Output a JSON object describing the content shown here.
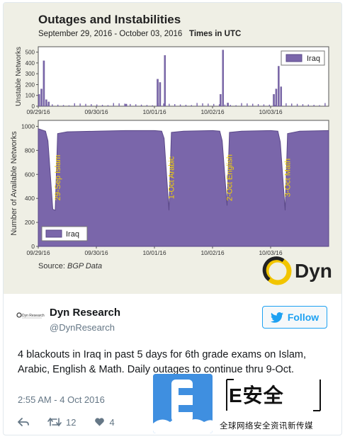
{
  "chart_header": {
    "title": "Outages and Instabilities",
    "dates": "September 29, 2016 - October 03, 2016",
    "timezone": "Times in UTC",
    "source_label": "Source:",
    "source_value": "BGP Data"
  },
  "chart_data": [
    {
      "type": "bar",
      "ylabel": "Unstable Networks",
      "ylim": [
        0,
        550
      ],
      "y_ticks": [
        "0",
        "100",
        "200",
        "300",
        "400",
        "500"
      ],
      "x_ticks": [
        "09/29/16",
        "09/30/16",
        "10/01/16",
        "10/02/16",
        "10/03/16"
      ],
      "legend": "Iraq",
      "legend_position": "top-right",
      "series": [
        {
          "name": "Iraq",
          "x": [
            "09/29 00:00",
            "09/29 01:00",
            "09/29 02:00",
            "09/29 03:00",
            "09/29 04:00",
            "09/30 12:00",
            "10/01 01:00",
            "10/01 02:00",
            "10/01 04:00",
            "10/02 03:00",
            "10/02 04:00",
            "10/02 06:00",
            "10/03 01:00",
            "10/03 02:00",
            "10/03 03:00",
            "10/03 04:00"
          ],
          "values": [
            110,
            160,
            420,
            60,
            40,
            20,
            250,
            220,
            470,
            110,
            520,
            30,
            110,
            160,
            370,
            180
          ]
        }
      ]
    },
    {
      "type": "area",
      "ylabel": "Number of Available Networks",
      "ylim": [
        0,
        1050
      ],
      "y_ticks": [
        "0",
        "200",
        "400",
        "600",
        "800",
        "1000"
      ],
      "x_ticks": [
        "09/29/16",
        "09/30/16",
        "10/01/16",
        "10/02/16",
        "10/03/16"
      ],
      "legend": "Iraq",
      "legend_position": "bottom-left",
      "annotations": [
        "29-Sep Islam",
        "1-Oct Arabic",
        "2-Oct English",
        "3-Oct Math"
      ],
      "series": [
        {
          "name": "Iraq",
          "x": [
            "09/29 00:00",
            "09/29 03:00",
            "09/29 04:00",
            "09/29 06:00",
            "09/29 07:00",
            "09/29 08:00",
            "09/29 12:00",
            "09/30 00:00",
            "09/30 12:00",
            "10/01 00:00",
            "10/01 03:00",
            "10/01 04:00",
            "10/01 06:00",
            "10/01 07:00",
            "10/01 12:00",
            "10/02 00:00",
            "10/02 03:00",
            "10/02 04:00",
            "10/02 06:00",
            "10/02 07:00",
            "10/02 12:00",
            "10/03 00:00",
            "10/03 03:00",
            "10/03 04:00",
            "10/03 06:00",
            "10/03 07:00",
            "10/03 12:00",
            "10/03 23:59"
          ],
          "values": [
            980,
            960,
            880,
            310,
            300,
            940,
            955,
            960,
            965,
            965,
            960,
            900,
            300,
            950,
            960,
            965,
            960,
            880,
            340,
            950,
            960,
            965,
            960,
            870,
            300,
            940,
            960,
            965
          ]
        }
      ]
    }
  ],
  "brand_logo": {
    "name": "Dyn"
  },
  "tweet": {
    "author_name": "Dyn Research",
    "author_handle": "@DynResearch",
    "follow_label": "Follow",
    "text": "4 blackouts in Iraq in past 5 days for 6th grade exams on Islam, Arabic, English & Math. Daily outages to continue thru 9-Oct.",
    "timestamp": "2:55 AM - 4 Oct 2016",
    "retweet_count": "12",
    "like_count": "4",
    "avatar_text": "Dyn Research"
  },
  "watermark": {
    "tile_letter": "E",
    "brand": "E安全",
    "subtitle": "全球网络安全资讯新传媒"
  },
  "colors": {
    "series": "#7a66aa",
    "series_dark": "#5a4888",
    "panel_bg": "#efefe5",
    "twitter_blue": "#1da1f2",
    "esec_blue": "#3f8fe0"
  }
}
